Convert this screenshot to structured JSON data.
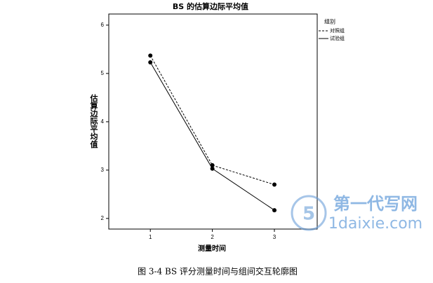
{
  "chart_data": {
    "type": "line",
    "title": "BS 的估算边际平均值",
    "x_label": "测量时间",
    "y_label": "估算边际平均值",
    "x": [
      1,
      2,
      3
    ],
    "xlim": [
      0.33,
      3.69
    ],
    "xticks": [
      1,
      2,
      3
    ],
    "ylim": [
      1.78,
      6.23
    ],
    "yticks": [
      2,
      3,
      4,
      5,
      6
    ],
    "legend_title": "组别",
    "legend_position": "right",
    "series": [
      {
        "name": "对照组",
        "color": "#000000",
        "linestyle": "dashed",
        "values": [
          5.37,
          3.1,
          2.7
        ]
      },
      {
        "name": "试验组",
        "color": "#000000",
        "linestyle": "solid",
        "values": [
          5.23,
          3.03,
          2.17
        ]
      }
    ],
    "caption": "图 3-4 BS 评分测量时间与组间交互轮廓图",
    "watermark": [
      "第一代写网",
      "1daixie.com"
    ]
  }
}
